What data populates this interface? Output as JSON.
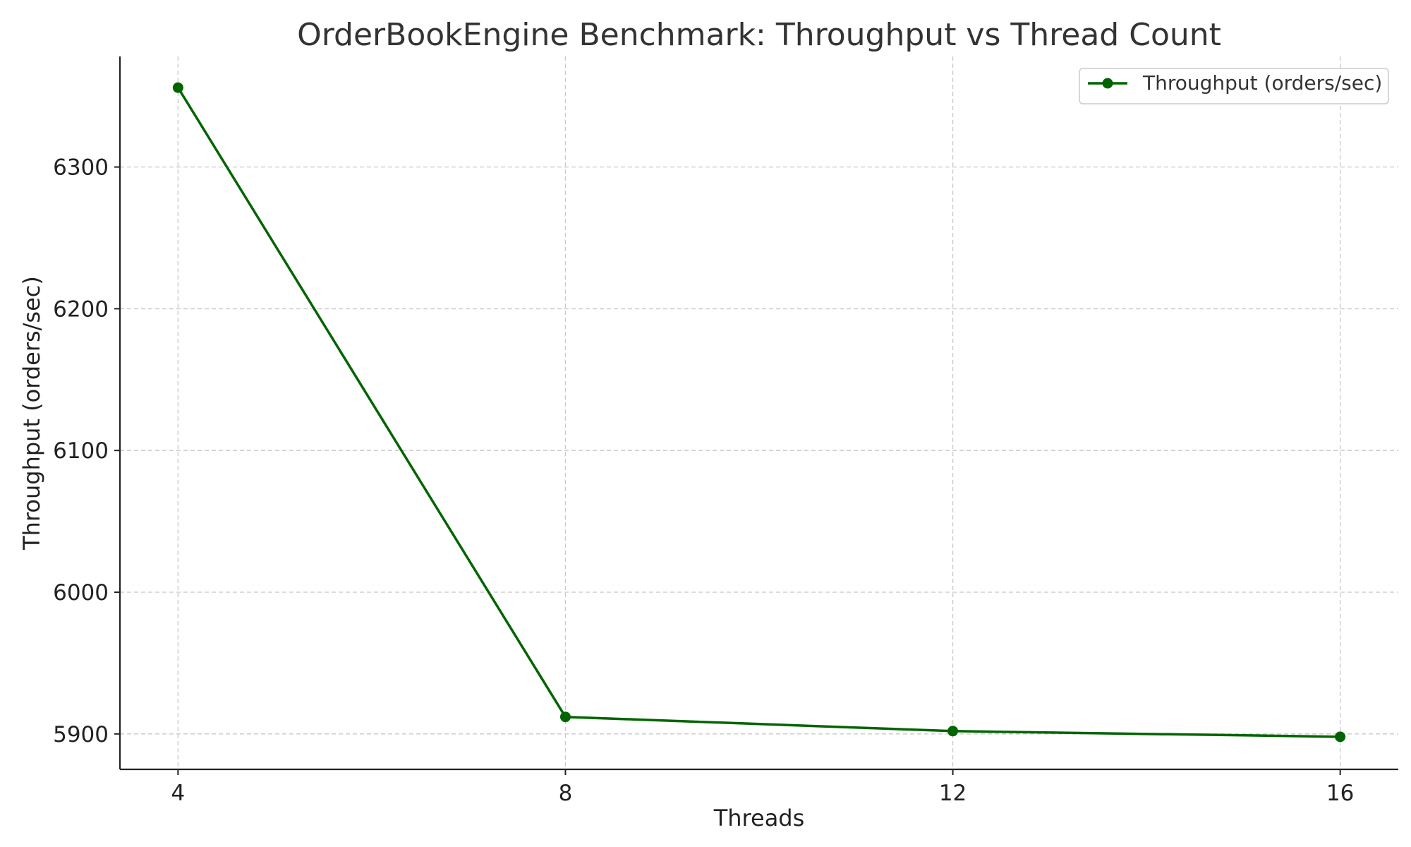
{
  "chart_data": {
    "type": "line",
    "title": "OrderBookEngine Benchmark: Throughput vs Thread Count",
    "xlabel": "Threads",
    "ylabel": "Throughput (orders/sec)",
    "x": [
      4,
      8,
      12,
      16
    ],
    "x_ticks": [
      "4",
      "8",
      "12",
      "16"
    ],
    "y_ticks": [
      5900,
      6000,
      6100,
      6200,
      6300
    ],
    "ylim": [
      5875,
      6378
    ],
    "xlim": [
      3.4,
      16.6
    ],
    "grid": true,
    "legend_position": "top-right",
    "series": [
      {
        "name": "Throughput (orders/sec)",
        "color": "#006400",
        "marker": "circle",
        "values": [
          6356,
          5912,
          5902,
          5898
        ]
      }
    ]
  }
}
